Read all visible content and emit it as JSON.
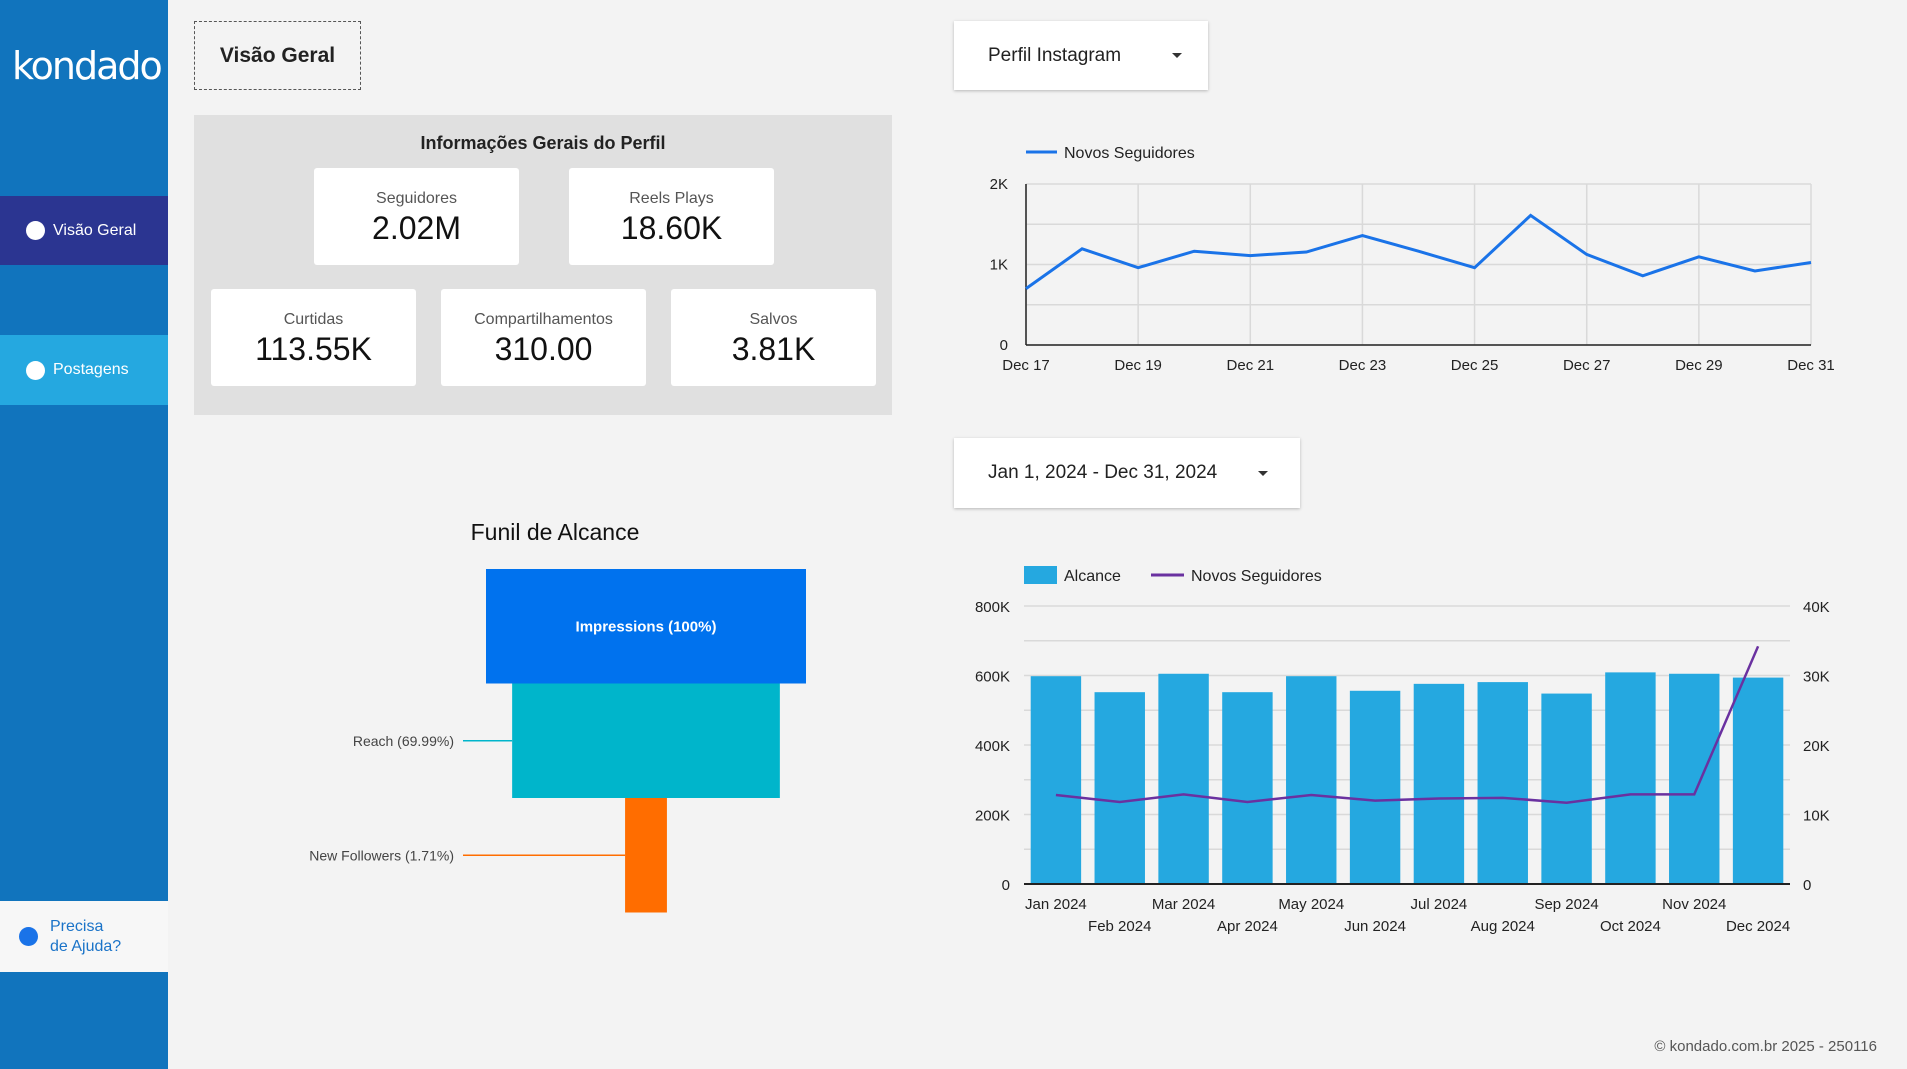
{
  "sidebar": {
    "logo": "kondado",
    "items": [
      {
        "label": "Visão Geral"
      },
      {
        "label": "Postagens"
      }
    ],
    "help_line1": "Precisa",
    "help_line2": "de Ajuda?"
  },
  "header": {
    "page_button": "Visão Geral",
    "profile_dropdown": "Perfil Instagram",
    "date_range": "Jan 1, 2024 - Dec 31, 2024"
  },
  "panel": {
    "title": "Informações Gerais do Perfil",
    "cards": [
      {
        "label": "Seguidores",
        "value": "2.02M"
      },
      {
        "label": "Reels Plays",
        "value": "18.60K"
      },
      {
        "label": "Curtidas",
        "value": "113.55K"
      },
      {
        "label": "Compartilhamentos",
        "value": "310.00"
      },
      {
        "label": "Salvos",
        "value": "3.81K"
      }
    ]
  },
  "colors": {
    "sidebar": "#1174bd",
    "nav_active": "#2b3591",
    "nav_secondary": "#25a8e0",
    "line_blue": "#1a73e8",
    "bar": "#25a8e0",
    "line_purple": "#6a31a0",
    "funnel_1": "#0072ee",
    "funnel_2": "#00b5cb",
    "funnel_3": "#ff6d00"
  },
  "chart_data": [
    {
      "type": "line",
      "legend": [
        "Novos Seguidores"
      ],
      "legend_position": "top-left",
      "grid": true,
      "x": [
        "Dec 17",
        "Dec 18",
        "Dec 19",
        "Dec 20",
        "Dec 21",
        "Dec 22",
        "Dec 23",
        "Dec 24",
        "Dec 25",
        "Dec 26",
        "Dec 27",
        "Dec 28",
        "Dec 29",
        "Dec 30",
        "Dec 31"
      ],
      "x_tick_labels": [
        "Dec 17",
        "Dec 19",
        "Dec 21",
        "Dec 23",
        "Dec 25",
        "Dec 27",
        "Dec 29",
        "Dec 31"
      ],
      "series": [
        {
          "name": "Novos Seguidores",
          "values": [
            700,
            1195,
            960,
            1165,
            1110,
            1155,
            1360,
            1165,
            960,
            1610,
            1125,
            860,
            1095,
            920,
            1025
          ]
        }
      ],
      "ylim": [
        0,
        2000
      ],
      "y_tick_labels": [
        "0",
        "1K",
        "2K"
      ]
    },
    {
      "type": "funnel",
      "title": "Funil de Alcance",
      "stages": [
        {
          "label": "Impressions (100%)",
          "percent": 100
        },
        {
          "label": "Reach (69.99%)",
          "percent": 69.99
        },
        {
          "label": "New Followers (1.71%)",
          "percent": 1.71
        }
      ]
    },
    {
      "type": "bar+line",
      "legend": [
        "Alcance",
        "Novos Seguidores"
      ],
      "legend_position": "top-left",
      "grid": true,
      "categories": [
        "Jan 2024",
        "Feb 2024",
        "Mar 2024",
        "Apr 2024",
        "May 2024",
        "Jun 2024",
        "Jul 2024",
        "Aug 2024",
        "Sep 2024",
        "Oct 2024",
        "Nov 2024",
        "Dec 2024"
      ],
      "series": [
        {
          "name": "Alcance",
          "type": "bar",
          "axis": "left",
          "values": [
            598000,
            552000,
            605000,
            552000,
            598000,
            556000,
            576000,
            581000,
            548000,
            609000,
            605000,
            594000
          ]
        },
        {
          "name": "Novos Seguidores",
          "type": "line",
          "axis": "right",
          "values": [
            12800,
            11800,
            12900,
            11800,
            12800,
            12000,
            12300,
            12400,
            11700,
            12900,
            12900,
            34200
          ]
        }
      ],
      "ylim_left": [
        0,
        800000
      ],
      "y_left_tick_labels": [
        "0",
        "200K",
        "400K",
        "600K",
        "800K"
      ],
      "ylim_right": [
        0,
        40000
      ],
      "y_right_tick_labels": [
        "0",
        "10K",
        "20K",
        "30K",
        "40K"
      ]
    }
  ],
  "footer": "© kondado.com.br 2025 - 250116"
}
